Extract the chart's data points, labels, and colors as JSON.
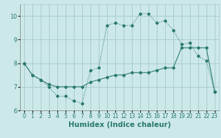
{
  "xlabel": "Humidex (Indice chaleur)",
  "x": [
    0,
    1,
    2,
    3,
    4,
    5,
    6,
    7,
    8,
    9,
    10,
    11,
    12,
    13,
    14,
    15,
    16,
    17,
    18,
    19,
    20,
    21,
    22,
    23
  ],
  "line1_dotted": [
    8.0,
    7.5,
    7.3,
    7.0,
    6.6,
    6.6,
    6.4,
    6.3,
    7.7,
    7.8,
    9.6,
    9.7,
    9.6,
    9.6,
    10.1,
    10.1,
    9.7,
    9.8,
    9.4,
    8.8,
    8.85,
    8.3,
    8.1,
    6.8
  ],
  "line2_solid": [
    8.0,
    7.5,
    7.3,
    7.1,
    7.0,
    7.0,
    7.0,
    7.0,
    7.2,
    7.3,
    7.4,
    7.5,
    7.5,
    7.6,
    7.6,
    7.6,
    7.7,
    7.8,
    7.8,
    8.65,
    8.65,
    8.65,
    8.65,
    6.8
  ],
  "line_color": "#2a7a6a",
  "bg_color": "#cce8e8",
  "grid_color": "#aacccc",
  "ylim": [
    6.0,
    10.5
  ],
  "xlim": [
    -0.5,
    23.5
  ],
  "yticks": [
    6,
    7,
    8,
    9,
    10
  ],
  "xticks": [
    0,
    1,
    2,
    3,
    4,
    5,
    6,
    7,
    8,
    9,
    10,
    11,
    12,
    13,
    14,
    15,
    16,
    17,
    18,
    19,
    20,
    21,
    22,
    23
  ],
  "tick_fontsize": 5.5,
  "xlabel_fontsize": 7.5
}
